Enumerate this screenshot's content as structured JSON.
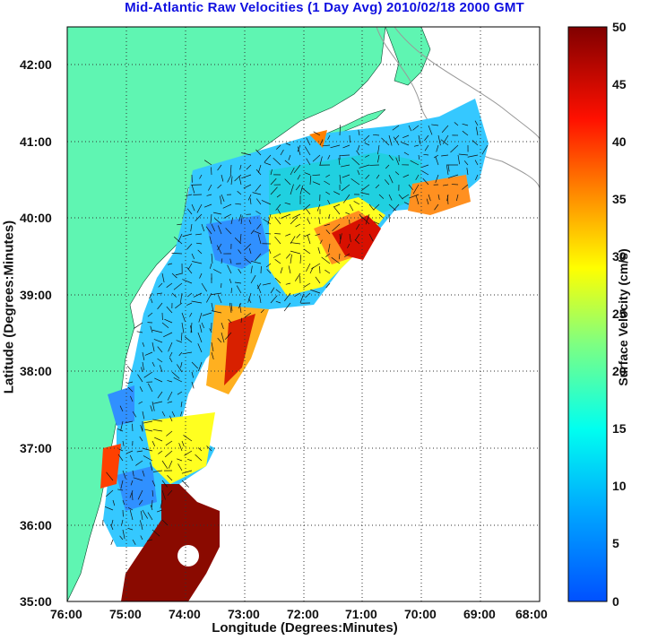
{
  "title": "Mid-Atlantic Raw Velocities (1 Day Avg) 2010/02/18 2000 GMT",
  "axes": {
    "xlabel": "Longitude (Degrees:Minutes)",
    "ylabel": "Latitude (Degrees:Minutes)",
    "xticks": [
      "76:00",
      "75:00",
      "74:00",
      "73:00",
      "72:00",
      "71:00",
      "70:00",
      "69:00",
      "68:00"
    ],
    "yticks": [
      "42:00",
      "41:00",
      "40:00",
      "39:00",
      "38:00",
      "37:00",
      "36:00",
      "35:00"
    ]
  },
  "colorbar": {
    "label": "Surface Velocity (cm/s)",
    "ticks": [
      "50",
      "45",
      "40",
      "35",
      "30",
      "25",
      "20",
      "15",
      "10",
      "5",
      "0"
    ],
    "min": 0,
    "max": 50,
    "colormap": [
      "#0050ff",
      "#00b0ff",
      "#00ffff",
      "#80ff80",
      "#ffff00",
      "#ff8000",
      "#ff0000",
      "#800000"
    ]
  },
  "colors": {
    "land": "#5ff5b2",
    "water": "#ffffff",
    "title": "#1010e0"
  }
}
